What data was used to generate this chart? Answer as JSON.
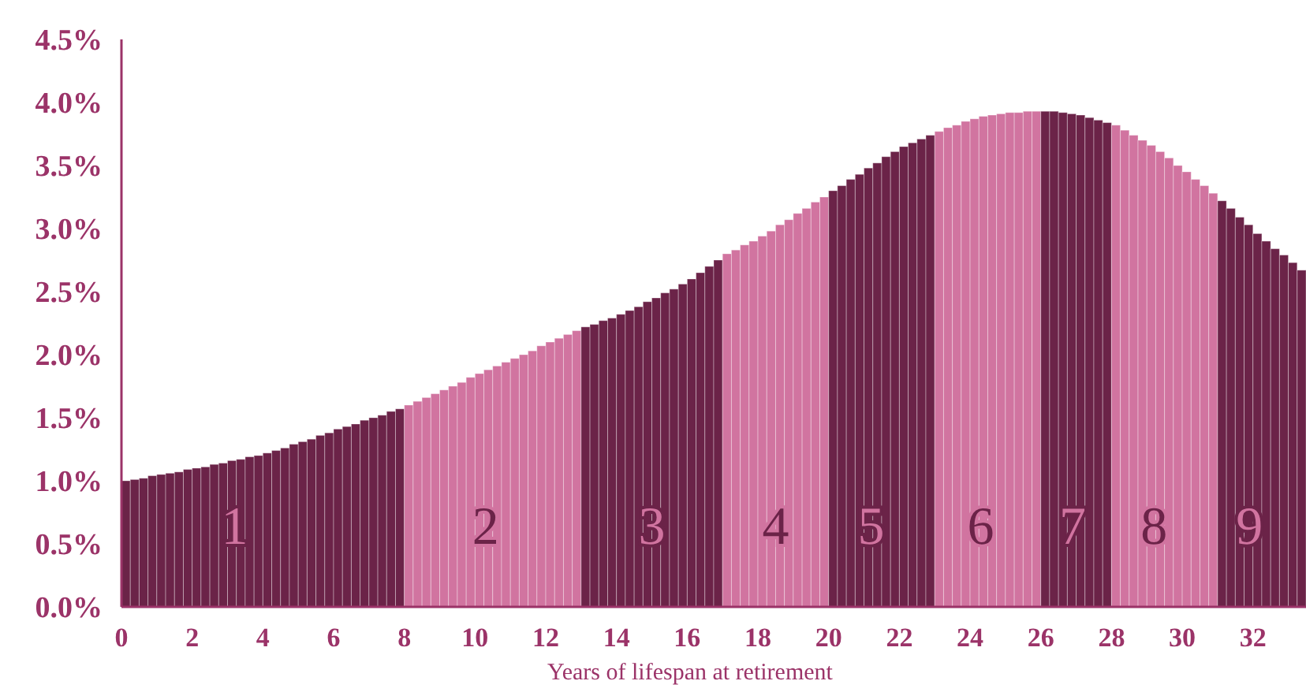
{
  "chart_data": {
    "type": "bar",
    "xlabel": "Years of lifespan at retirement",
    "xlim": [
      0,
      33.5
    ],
    "ylim": [
      0,
      4.5
    ],
    "xticks": [
      0,
      2,
      4,
      6,
      8,
      10,
      12,
      14,
      16,
      18,
      20,
      22,
      24,
      26,
      28,
      30,
      32
    ],
    "yticks": [
      {
        "value": 0,
        "label": "0.0%"
      },
      {
        "value": 0.5,
        "label": "0.5%"
      },
      {
        "value": 1,
        "label": "1.0%"
      },
      {
        "value": 1.5,
        "label": "1.5%"
      },
      {
        "value": 2,
        "label": "2.0%"
      },
      {
        "value": 2.5,
        "label": "2.5%"
      },
      {
        "value": 3,
        "label": "3.0%"
      },
      {
        "value": 3.5,
        "label": "3.5%"
      },
      {
        "value": 4,
        "label": "4.0%"
      },
      {
        "value": 4.5,
        "label": "4.5%"
      }
    ],
    "grid": false,
    "series": [
      {
        "color": "#6b2348",
        "x": [
          0,
          0.25,
          0.5,
          0.75,
          1,
          1.25,
          1.5,
          1.75,
          2,
          2.25,
          2.5,
          2.75,
          3,
          3.25,
          3.5,
          3.75,
          4,
          4.25,
          4.5,
          4.75,
          5,
          5.25,
          5.5,
          5.75,
          6,
          6.25,
          6.5,
          6.75,
          7,
          7.25,
          7.5,
          7.75
        ],
        "values": [
          1.0,
          1.01,
          1.02,
          1.04,
          1.05,
          1.06,
          1.07,
          1.09,
          1.1,
          1.11,
          1.13,
          1.14,
          1.16,
          1.17,
          1.19,
          1.2,
          1.22,
          1.24,
          1.26,
          1.29,
          1.31,
          1.33,
          1.36,
          1.38,
          1.41,
          1.43,
          1.45,
          1.48,
          1.5,
          1.52,
          1.55,
          1.57
        ]
      },
      {
        "color": "#d174a0",
        "x": [
          8,
          8.25,
          8.5,
          8.75,
          9,
          9.25,
          9.5,
          9.75,
          10,
          10.25,
          10.5,
          10.75,
          11,
          11.25,
          11.5,
          11.75,
          12,
          12.25,
          12.5,
          12.75
        ],
        "values": [
          1.6,
          1.63,
          1.66,
          1.69,
          1.72,
          1.75,
          1.78,
          1.82,
          1.85,
          1.88,
          1.91,
          1.94,
          1.97,
          2.0,
          2.03,
          2.07,
          2.1,
          2.13,
          2.16,
          2.19
        ]
      },
      {
        "color": "#6b2348",
        "x": [
          13,
          13.25,
          13.5,
          13.75,
          14,
          14.25,
          14.5,
          14.75,
          15,
          15.25,
          15.5,
          15.75,
          16,
          16.25,
          16.5,
          16.75
        ],
        "values": [
          2.22,
          2.24,
          2.27,
          2.29,
          2.32,
          2.35,
          2.38,
          2.42,
          2.45,
          2.49,
          2.52,
          2.56,
          2.6,
          2.65,
          2.7,
          2.75
        ]
      },
      {
        "color": "#d174a0",
        "x": [
          17,
          17.25,
          17.5,
          17.75,
          18,
          18.25,
          18.5,
          18.75,
          19,
          19.25,
          19.5,
          19.75
        ],
        "values": [
          2.8,
          2.83,
          2.87,
          2.9,
          2.94,
          2.98,
          3.03,
          3.07,
          3.12,
          3.16,
          3.21,
          3.25
        ]
      },
      {
        "color": "#6b2348",
        "x": [
          20,
          20.25,
          20.5,
          20.75,
          21,
          21.25,
          21.5,
          21.75,
          22,
          22.25,
          22.5,
          22.75
        ],
        "values": [
          3.3,
          3.34,
          3.39,
          3.43,
          3.48,
          3.52,
          3.57,
          3.61,
          3.65,
          3.68,
          3.71,
          3.74
        ]
      },
      {
        "color": "#d174a0",
        "x": [
          23,
          23.25,
          23.5,
          23.75,
          24,
          24.25,
          24.5,
          24.75,
          25,
          25.25,
          25.5,
          25.75
        ],
        "values": [
          3.77,
          3.8,
          3.82,
          3.85,
          3.87,
          3.89,
          3.9,
          3.91,
          3.92,
          3.92,
          3.93,
          3.93
        ]
      },
      {
        "color": "#6b2348",
        "x": [
          26,
          26.25,
          26.5,
          26.75,
          27,
          27.25,
          27.5,
          27.75
        ],
        "values": [
          3.93,
          3.93,
          3.92,
          3.91,
          3.9,
          3.88,
          3.86,
          3.84
        ]
      },
      {
        "color": "#d174a0",
        "x": [
          28,
          28.25,
          28.5,
          28.75,
          29,
          29.25,
          29.5,
          29.75,
          30,
          30.25,
          30.5,
          30.75
        ],
        "values": [
          3.82,
          3.78,
          3.74,
          3.7,
          3.66,
          3.61,
          3.56,
          3.5,
          3.45,
          3.39,
          3.34,
          3.28
        ]
      },
      {
        "color": "#6b2348",
        "x": [
          31,
          31.25,
          31.5,
          31.75,
          32,
          32.25,
          32.5,
          32.75,
          33,
          33.25
        ],
        "values": [
          3.22,
          3.16,
          3.09,
          3.03,
          2.96,
          2.9,
          2.84,
          2.79,
          2.73,
          2.67
        ]
      }
    ],
    "annotations": [
      {
        "text": "1",
        "x": 3.2,
        "y": 0.65
      },
      {
        "text": "2",
        "x": 10.3,
        "y": 0.65
      },
      {
        "text": "3",
        "x": 15,
        "y": 0.65
      },
      {
        "text": "4",
        "x": 18.5,
        "y": 0.65
      },
      {
        "text": "5",
        "x": 21.2,
        "y": 0.65
      },
      {
        "text": "6",
        "x": 24.3,
        "y": 0.65
      },
      {
        "text": "7",
        "x": 26.9,
        "y": 0.65
      },
      {
        "text": "8",
        "x": 29.2,
        "y": 0.65
      },
      {
        "text": "9",
        "x": 31.9,
        "y": 0.65
      }
    ]
  }
}
